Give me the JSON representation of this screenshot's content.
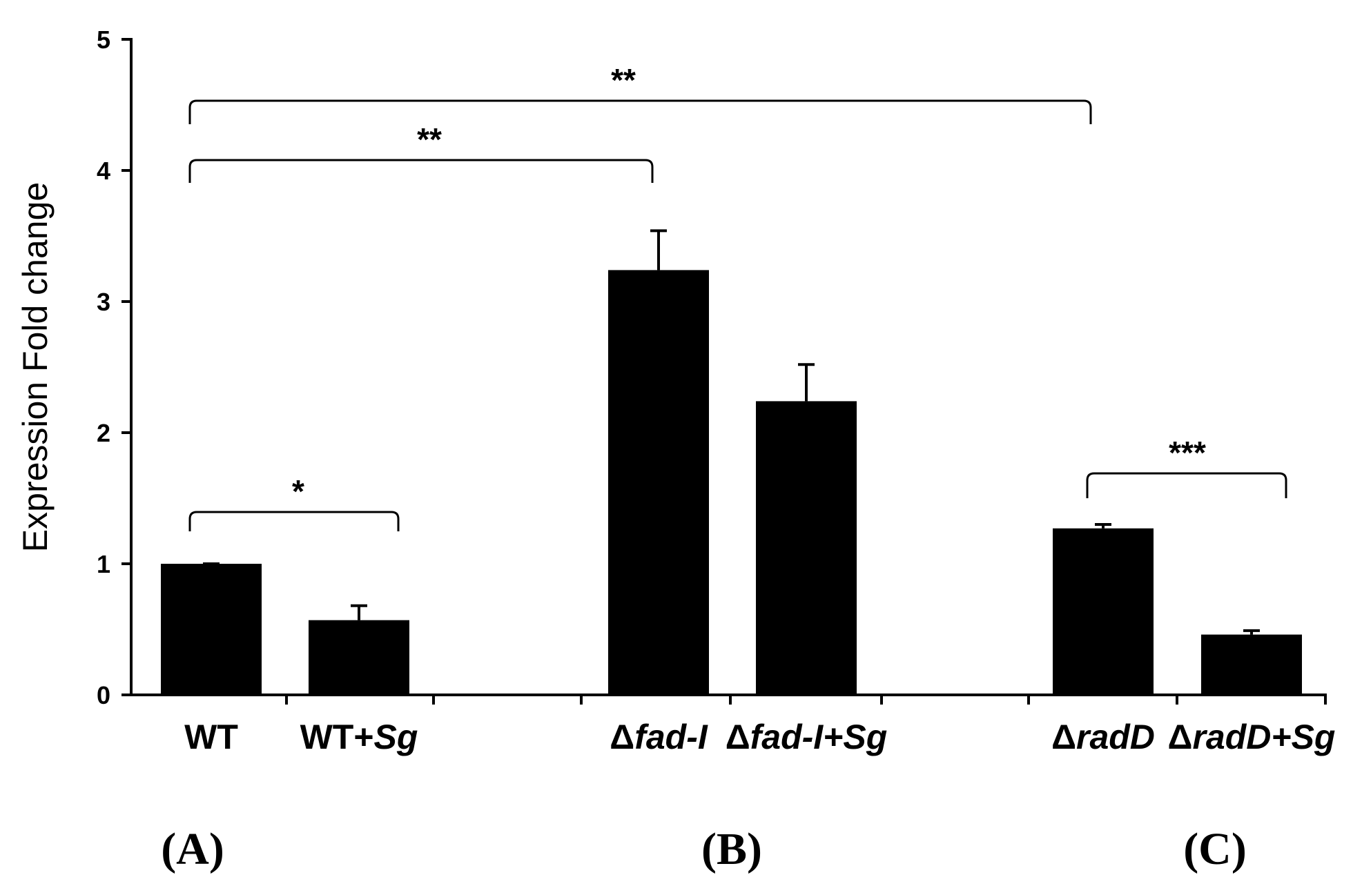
{
  "chart_data": {
    "type": "bar",
    "title": "",
    "xlabel": "",
    "ylabel": "Expression Fold change",
    "ylim": [
      0,
      5
    ],
    "yticks": [
      "0",
      "1",
      "2",
      "3",
      "4",
      "5"
    ],
    "grid": false,
    "categories": [
      {
        "prefix": "WT",
        "italic": ""
      },
      {
        "prefix": "WT+",
        "italic": "Sg"
      },
      {
        "prefix": "Δ",
        "italic": "fad-I"
      },
      {
        "prefix": "Δ",
        "italic": "fad-I+Sg"
      },
      {
        "prefix": "Δ",
        "italic": "radD"
      },
      {
        "prefix": "Δ",
        "italic": "radD+Sg"
      }
    ],
    "values": [
      1.0,
      0.57,
      3.24,
      2.24,
      1.27,
      0.46
    ],
    "errors": [
      0.0,
      0.11,
      0.3,
      0.28,
      0.03,
      0.03
    ],
    "significance": [
      {
        "from": 0,
        "to": 1,
        "label": "*"
      },
      {
        "from": 0,
        "to": 2,
        "label": "**"
      },
      {
        "from": 0,
        "to": 4,
        "label": "**"
      },
      {
        "from": 4,
        "to": 5,
        "label": "***"
      }
    ],
    "panels": [
      "(A)",
      "(B)",
      "(C)"
    ],
    "colors": {
      "bar": "#000000",
      "axis": "#000000",
      "background": "#ffffff"
    }
  }
}
